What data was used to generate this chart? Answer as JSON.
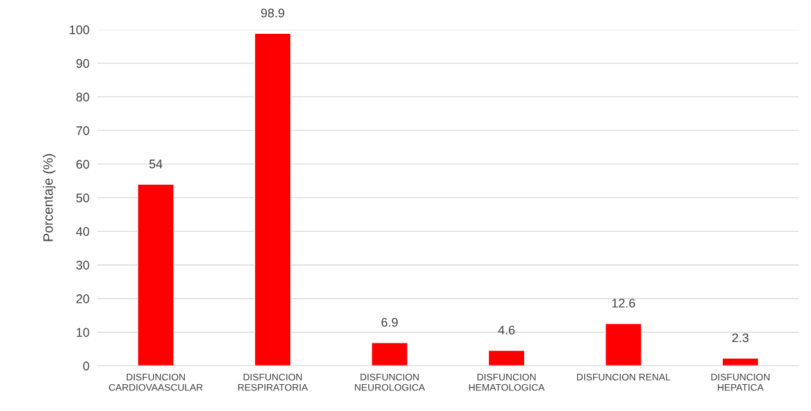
{
  "chart_data": {
    "type": "bar",
    "ylabel": "Porcentaje (%)",
    "categories": [
      "DISFUNCION\nCARDIOVAASCULAR",
      "DISFUNCION\nRESPIRATORIA",
      "DISFUNCION\nNEUROLOGICA",
      "DISFUNCION\nHEMATOLOGICA",
      "DISFUNCION RENAL",
      "DISFUNCION\nHEPATICA"
    ],
    "values": [
      54,
      98.9,
      6.9,
      4.6,
      12.6,
      2.3
    ],
    "color": "#ff0000",
    "ylim": [
      0,
      100
    ],
    "yticks": [
      0,
      10,
      20,
      30,
      40,
      50,
      60,
      70,
      80,
      90,
      100
    ],
    "grid": "y",
    "data_labels": true
  }
}
